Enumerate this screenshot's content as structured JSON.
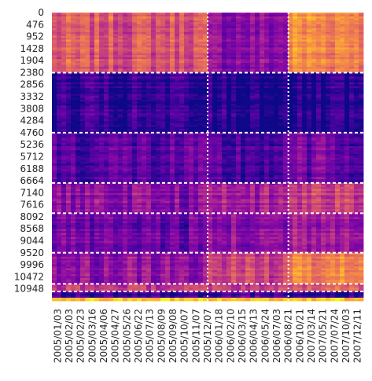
{
  "chart_data": {
    "type": "heatmap",
    "title": "",
    "xlabel": "",
    "ylabel": "",
    "colormap": "plasma",
    "colorbar": false,
    "y_ticks": [
      "0",
      "476",
      "952",
      "1428",
      "1904",
      "2380",
      "2856",
      "3332",
      "3808",
      "4284",
      "4760",
      "5236",
      "5712",
      "6188",
      "6664",
      "7140",
      "7616",
      "8092",
      "8568",
      "9044",
      "9520",
      "9996",
      "10472",
      "10948"
    ],
    "y_range": [
      0,
      11425
    ],
    "x_ticks": [
      "2005/01/03",
      "2005/02/03",
      "2005/02/23",
      "2005/03/16",
      "2005/04/06",
      "2005/04/27",
      "2005/05/26",
      "2005/06/22",
      "2005/07/13",
      "2005/08/09",
      "2005/09/08",
      "2005/10/07",
      "2005/11/07",
      "2005/12/07",
      "2006/01/18",
      "2006/02/10",
      "2006/03/15",
      "2006/04/13",
      "2006/05/24",
      "2006/07/03",
      "2006/08/21",
      "2006/10/21",
      "2007/03/14",
      "2007/05/21",
      "2007/07/24",
      "2007/10/03",
      "2007/12/11"
    ],
    "cluster_boundaries_rows": [
      2380,
      4760,
      6750,
      7950,
      9520,
      10750,
      11050
    ],
    "period_boundaries_dates": [
      "2005/12/07",
      "2006/08/21"
    ],
    "separator_style": "white dashed",
    "intensity_blocks": [
      {
        "rows": [
          0,
          2380
        ],
        "levels": [
          0.55,
          0.28,
          0.72
        ]
      },
      {
        "rows": [
          2380,
          4760
        ],
        "levels": [
          0.05,
          0.04,
          0.01
        ]
      },
      {
        "rows": [
          4760,
          6750
        ],
        "levels": [
          0.15,
          0.12,
          0.2
        ]
      },
      {
        "rows": [
          6750,
          7950
        ],
        "levels": [
          0.28,
          0.35,
          0.48
        ]
      },
      {
        "rows": [
          7950,
          9520
        ],
        "levels": [
          0.2,
          0.28,
          0.38
        ]
      },
      {
        "rows": [
          9520,
          10750
        ],
        "levels": [
          0.3,
          0.48,
          0.72
        ]
      },
      {
        "rows": [
          10750,
          11050
        ],
        "levels": [
          0.45,
          0.45,
          0.55
        ]
      },
      {
        "rows": [
          11050,
          11300
        ],
        "levels": [
          0.08,
          0.12,
          0.02
        ]
      },
      {
        "rows": [
          11300,
          11425
        ],
        "levels": [
          0.85,
          0.85,
          0.85
        ]
      }
    ]
  }
}
